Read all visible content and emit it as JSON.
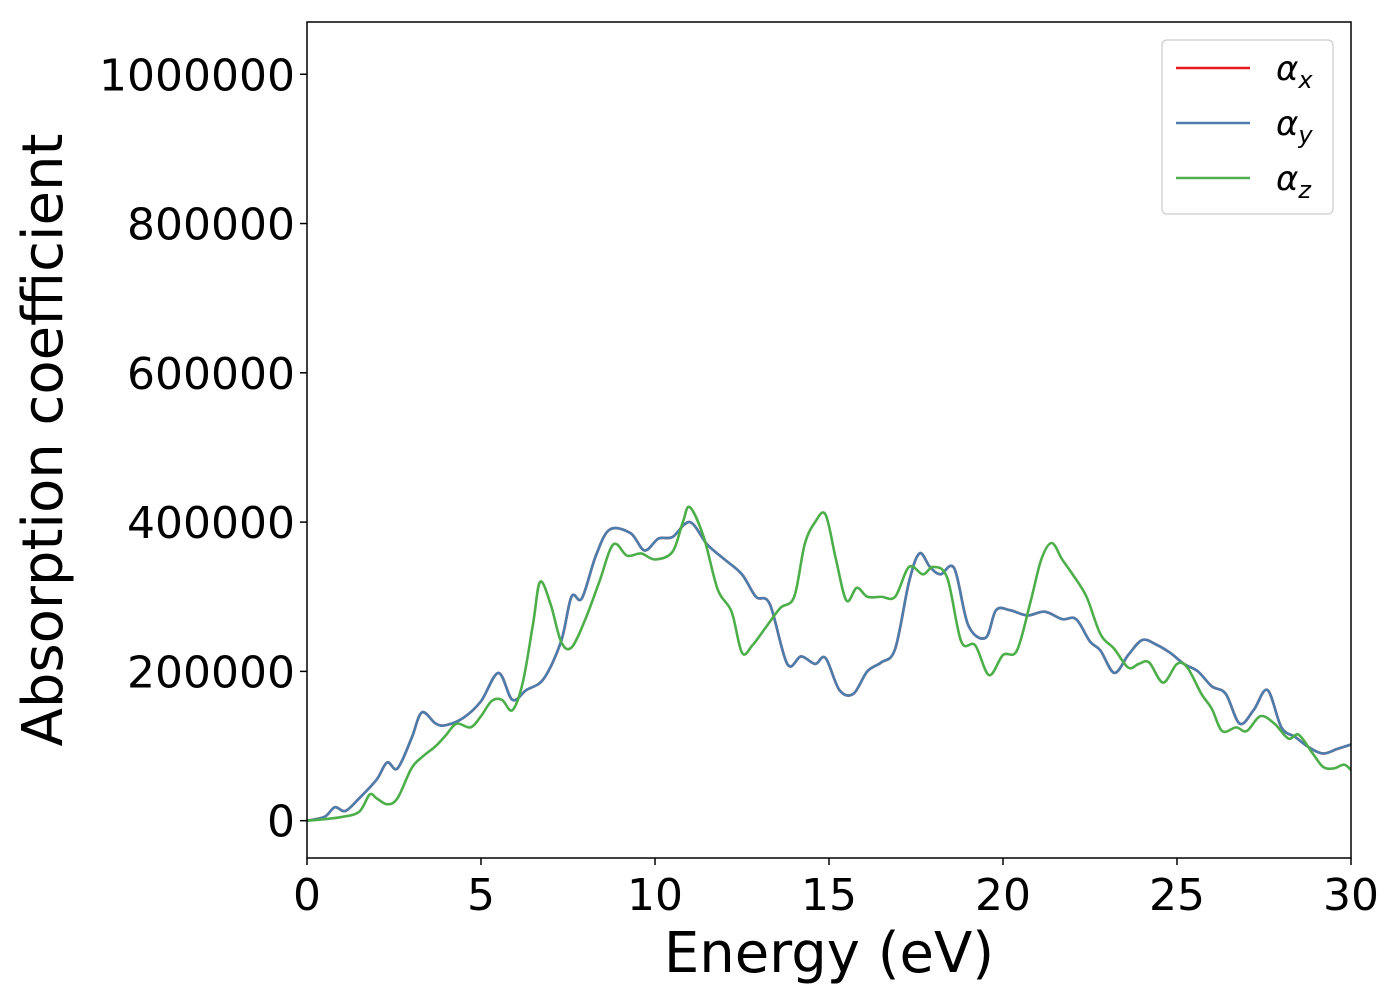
{
  "chart_data": {
    "type": "line",
    "title": "",
    "xlabel": "Energy (eV)",
    "ylabel": "Absorption coefficient",
    "xlim": [
      0,
      30
    ],
    "ylim": [
      -50000,
      1070000
    ],
    "x_ticks": [
      0,
      5,
      10,
      15,
      20,
      25,
      30
    ],
    "y_ticks": [
      0,
      200000,
      400000,
      600000,
      800000,
      1000000
    ],
    "x_tick_labels": [
      "0",
      "5",
      "10",
      "15",
      "20",
      "25",
      "30"
    ],
    "y_tick_labels": [
      "0",
      "200000",
      "400000",
      "600000",
      "800000",
      "1000000"
    ],
    "grid": false,
    "legend_position": "top-right",
    "series": [
      {
        "name": "α_x",
        "label_base": "α",
        "label_sub": "x",
        "color": "#e41a1c",
        "x": [
          0,
          0.5,
          0.8,
          1.1,
          1.5,
          2.0,
          2.3,
          2.6,
          3.0,
          3.3,
          3.7,
          4.0,
          4.5,
          5.0,
          5.5,
          5.9,
          6.3,
          6.8,
          7.3,
          7.6,
          7.9,
          8.3,
          8.7,
          9.3,
          9.7,
          10.1,
          10.5,
          11.0,
          11.5,
          12.0,
          12.5,
          12.9,
          13.3,
          13.8,
          14.2,
          14.6,
          14.9,
          15.3,
          15.7,
          16.1,
          16.5,
          16.9,
          17.3,
          17.6,
          17.9,
          18.2,
          18.6,
          19.0,
          19.5,
          19.8,
          20.2,
          20.7,
          21.2,
          21.7,
          22.1,
          22.5,
          22.8,
          23.2,
          23.6,
          24.0,
          24.4,
          24.8,
          25.2,
          25.6,
          26.0,
          26.4,
          26.8,
          27.2,
          27.6,
          28.0,
          28.4,
          28.8,
          29.2,
          29.6,
          30.0
        ],
        "y": [
          0,
          5000,
          18000,
          13000,
          30000,
          55000,
          78000,
          70000,
          110000,
          145000,
          130000,
          128000,
          138000,
          160000,
          198000,
          162000,
          175000,
          190000,
          240000,
          300000,
          298000,
          355000,
          390000,
          385000,
          362000,
          378000,
          380000,
          400000,
          370000,
          350000,
          330000,
          300000,
          290000,
          210000,
          220000,
          210000,
          218000,
          175000,
          170000,
          200000,
          212000,
          230000,
          320000,
          358000,
          340000,
          330000,
          338000,
          262000,
          245000,
          282000,
          282000,
          275000,
          280000,
          270000,
          270000,
          240000,
          228000,
          198000,
          222000,
          242000,
          236000,
          225000,
          210000,
          200000,
          180000,
          170000,
          130000,
          148000,
          175000,
          125000,
          112000,
          98000,
          90000,
          96000,
          102000
        ]
      },
      {
        "name": "α_y",
        "label_base": "α",
        "label_sub": "y",
        "color": "#4c7ead",
        "x": [
          0,
          0.5,
          0.8,
          1.1,
          1.5,
          2.0,
          2.3,
          2.6,
          3.0,
          3.3,
          3.7,
          4.0,
          4.5,
          5.0,
          5.5,
          5.9,
          6.3,
          6.8,
          7.3,
          7.6,
          7.9,
          8.3,
          8.7,
          9.3,
          9.7,
          10.1,
          10.5,
          11.0,
          11.5,
          12.0,
          12.5,
          12.9,
          13.3,
          13.8,
          14.2,
          14.6,
          14.9,
          15.3,
          15.7,
          16.1,
          16.5,
          16.9,
          17.3,
          17.6,
          17.9,
          18.2,
          18.6,
          19.0,
          19.5,
          19.8,
          20.2,
          20.7,
          21.2,
          21.7,
          22.1,
          22.5,
          22.8,
          23.2,
          23.6,
          24.0,
          24.4,
          24.8,
          25.2,
          25.6,
          26.0,
          26.4,
          26.8,
          27.2,
          27.6,
          28.0,
          28.4,
          28.8,
          29.2,
          29.6,
          30.0
        ],
        "y": [
          0,
          5000,
          18000,
          13000,
          30000,
          55000,
          78000,
          70000,
          110000,
          145000,
          130000,
          128000,
          138000,
          160000,
          198000,
          162000,
          175000,
          190000,
          240000,
          300000,
          298000,
          355000,
          390000,
          385000,
          362000,
          378000,
          380000,
          400000,
          370000,
          350000,
          330000,
          300000,
          290000,
          210000,
          220000,
          210000,
          218000,
          175000,
          170000,
          200000,
          212000,
          230000,
          320000,
          358000,
          340000,
          330000,
          338000,
          262000,
          245000,
          282000,
          282000,
          275000,
          280000,
          270000,
          270000,
          240000,
          228000,
          198000,
          222000,
          242000,
          236000,
          225000,
          210000,
          200000,
          180000,
          170000,
          130000,
          148000,
          175000,
          125000,
          112000,
          98000,
          90000,
          96000,
          102000
        ]
      },
      {
        "name": "α_z",
        "label_base": "α",
        "label_sub": "z",
        "color": "#4daf4a",
        "x": [
          0,
          0.5,
          1.0,
          1.5,
          1.8,
          2.0,
          2.3,
          2.6,
          3.0,
          3.3,
          3.7,
          4.0,
          4.3,
          4.7,
          5.0,
          5.3,
          5.6,
          5.9,
          6.2,
          6.5,
          6.7,
          7.0,
          7.3,
          7.6,
          8.0,
          8.4,
          8.8,
          9.2,
          9.6,
          10.0,
          10.5,
          10.8,
          11.0,
          11.4,
          11.8,
          12.2,
          12.5,
          12.8,
          13.2,
          13.6,
          14.0,
          14.3,
          14.6,
          14.9,
          15.2,
          15.5,
          15.8,
          16.1,
          16.5,
          16.9,
          17.3,
          17.7,
          18.0,
          18.4,
          18.8,
          19.2,
          19.6,
          20.0,
          20.4,
          20.8,
          21.1,
          21.4,
          21.7,
          22.0,
          22.4,
          22.8,
          23.2,
          23.6,
          23.9,
          24.2,
          24.6,
          25.0,
          25.3,
          25.7,
          26.0,
          26.3,
          26.7,
          27.0,
          27.4,
          27.8,
          28.2,
          28.5,
          28.9,
          29.2,
          29.5,
          29.8,
          30.0
        ],
        "y": [
          0,
          2000,
          5000,
          12000,
          35000,
          30000,
          22000,
          30000,
          70000,
          85000,
          100000,
          115000,
          130000,
          125000,
          140000,
          160000,
          162000,
          148000,
          185000,
          265000,
          320000,
          290000,
          240000,
          232000,
          270000,
          320000,
          370000,
          355000,
          358000,
          350000,
          360000,
          400000,
          420000,
          380000,
          310000,
          280000,
          225000,
          235000,
          260000,
          285000,
          300000,
          370000,
          400000,
          410000,
          350000,
          295000,
          312000,
          300000,
          300000,
          300000,
          340000,
          330000,
          340000,
          325000,
          240000,
          235000,
          195000,
          222000,
          228000,
          295000,
          350000,
          372000,
          350000,
          330000,
          300000,
          250000,
          230000,
          205000,
          210000,
          212000,
          185000,
          210000,
          205000,
          170000,
          150000,
          120000,
          125000,
          120000,
          140000,
          130000,
          110000,
          115000,
          90000,
          72000,
          70000,
          75000,
          68000
        ]
      }
    ]
  }
}
